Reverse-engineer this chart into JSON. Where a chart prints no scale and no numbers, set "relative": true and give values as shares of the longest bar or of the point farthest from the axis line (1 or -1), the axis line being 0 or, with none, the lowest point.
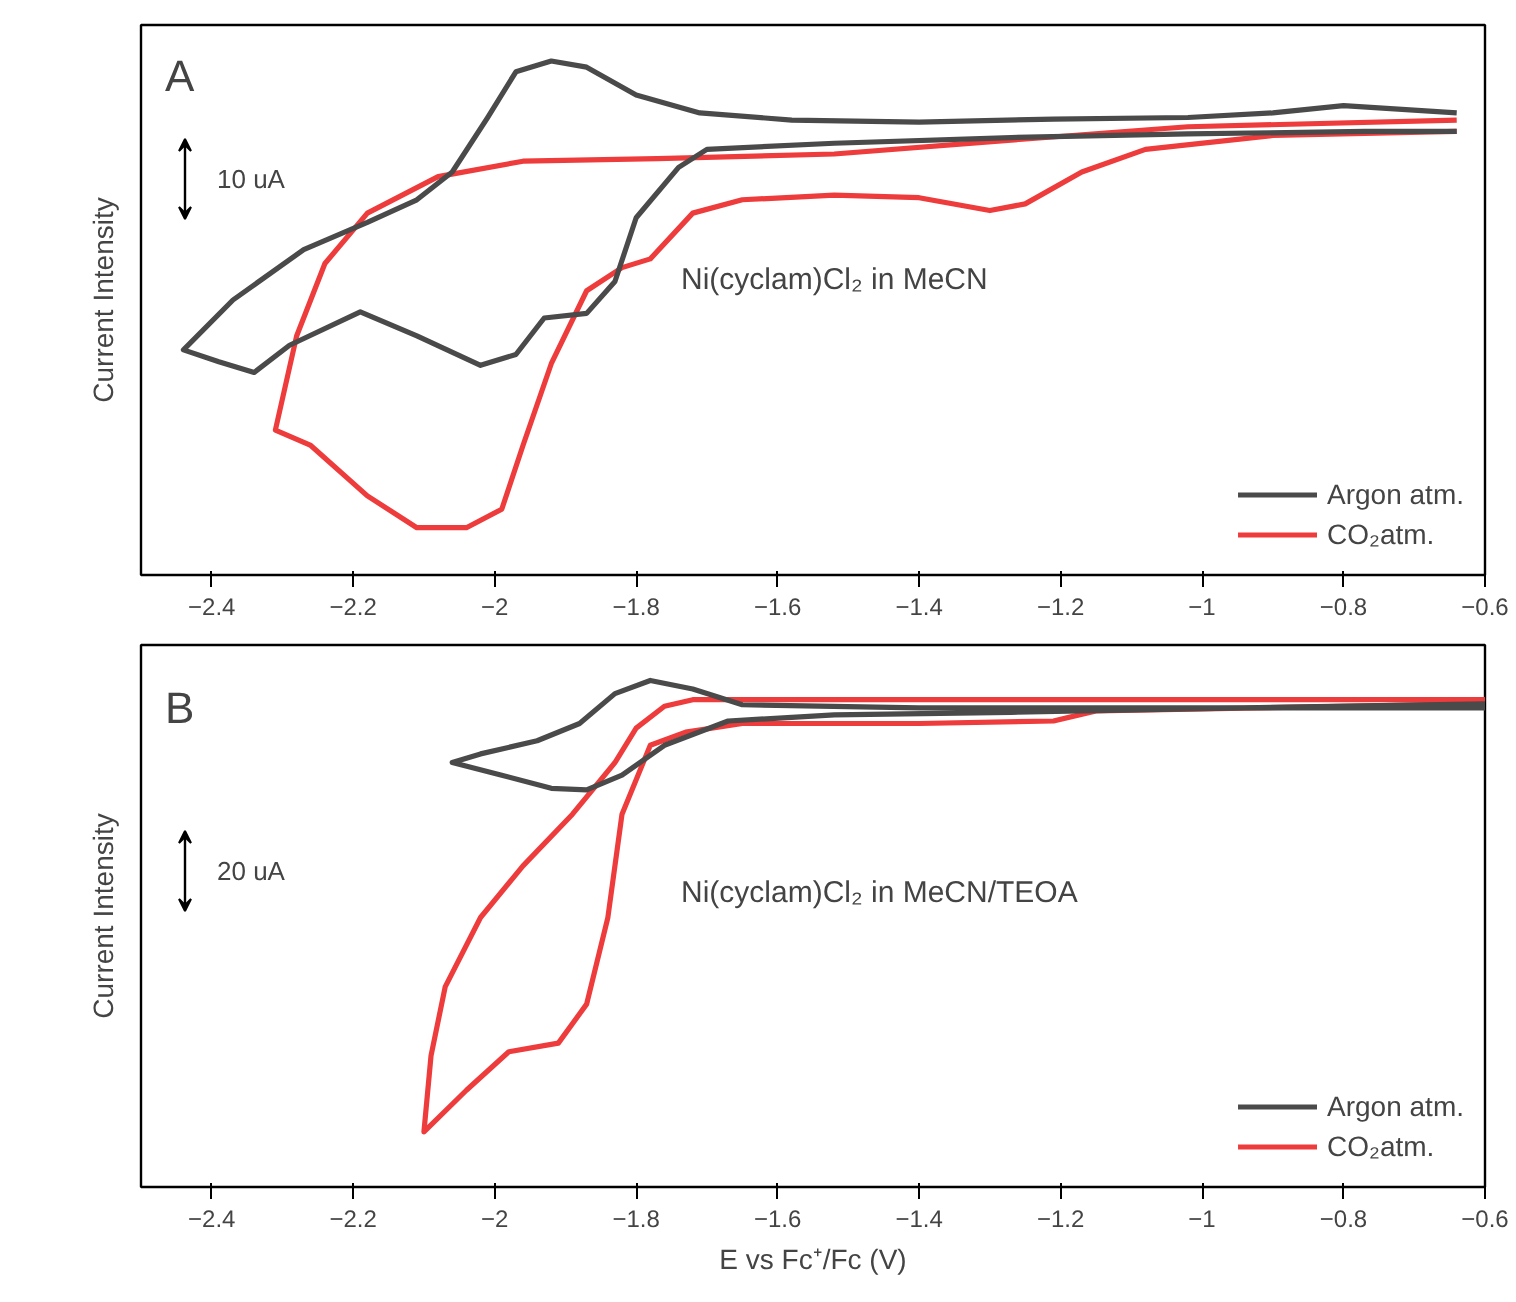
{
  "chart_data": [
    {
      "type": "line",
      "relative": true,
      "title": "A",
      "ylabel": "Current Intensity",
      "xlim": [
        -2.5,
        -0.6
      ],
      "xticks": [
        -2.4,
        -2.2,
        -2.0,
        -1.8,
        -1.6,
        -1.4,
        -1.2,
        -1.0,
        -0.8,
        -0.6
      ],
      "tick_labels": "x",
      "legend": "bottom right",
      "grid": false,
      "annotations": [
        "10 uA",
        "Ni(cyclam)Cl₂ in MeCN"
      ],
      "series": [
        {
          "name": "Argon atm.",
          "color": "#4a4a4a",
          "x": [
            -0.64,
            -0.8,
            -0.9,
            -1.02,
            -1.21,
            -1.4,
            -1.58,
            -1.71,
            -1.8,
            -1.87,
            -1.92,
            -1.97,
            -2.01,
            -2.06,
            -2.11,
            -2.18,
            -2.27,
            -2.37,
            -2.44,
            -2.39,
            -2.34,
            -2.29,
            -2.19,
            -2.11,
            -2.02,
            -1.97,
            -1.93,
            -1.87,
            -1.83,
            -1.8,
            -1.74,
            -1.7,
            -1.52,
            -1.27,
            -1.02,
            -0.77,
            -0.64
          ],
          "values": [
            0.899,
            0.913,
            0.899,
            0.89,
            0.887,
            0.881,
            0.885,
            0.899,
            0.934,
            0.988,
            1.0,
            0.979,
            0.89,
            0.784,
            0.73,
            0.686,
            0.633,
            0.535,
            0.438,
            0.415,
            0.394,
            0.447,
            0.512,
            0.465,
            0.408,
            0.429,
            0.5,
            0.509,
            0.571,
            0.695,
            0.793,
            0.828,
            0.84,
            0.851,
            0.858,
            0.863,
            0.863
          ]
        },
        {
          "name": "CO₂atm.",
          "color": "#ee3b3b",
          "x": [
            -0.64,
            -1.02,
            -1.27,
            -1.52,
            -1.77,
            -1.96,
            -2.08,
            -2.18,
            -2.24,
            -2.28,
            -2.31,
            -2.26,
            -2.18,
            -2.11,
            -2.04,
            -1.99,
            -1.96,
            -1.92,
            -1.87,
            -1.82,
            -1.78,
            -1.72,
            -1.65,
            -1.52,
            -1.4,
            -1.3,
            -1.25,
            -1.17,
            -1.08,
            -0.9,
            -0.64
          ],
          "values": [
            0.885,
            0.872,
            0.846,
            0.819,
            0.81,
            0.805,
            0.775,
            0.704,
            0.606,
            0.465,
            0.282,
            0.252,
            0.154,
            0.092,
            0.092,
            0.128,
            0.252,
            0.411,
            0.553,
            0.598,
            0.615,
            0.704,
            0.73,
            0.739,
            0.734,
            0.709,
            0.722,
            0.784,
            0.828,
            0.855,
            0.863
          ]
        }
      ]
    },
    {
      "type": "line",
      "relative": true,
      "title": "B",
      "xlabel": "E vs Fc⁺/Fc (V)",
      "ylabel": "Current Intensity",
      "xlim": [
        -2.5,
        -0.6
      ],
      "xticks": [
        -2.4,
        -2.2,
        -2.0,
        -1.8,
        -1.6,
        -1.4,
        -1.2,
        -1.0,
        -0.8,
        -0.6
      ],
      "tick_labels": "x",
      "legend": "bottom right",
      "grid": false,
      "annotations": [
        "20 uA",
        "Ni(cyclam)Cl₂ in MeCN/TEOA"
      ],
      "series": [
        {
          "name": "Argon atm.",
          "color": "#4a4a4a",
          "x": [
            -0.6,
            -1.02,
            -1.4,
            -1.65,
            -1.72,
            -1.78,
            -1.83,
            -1.88,
            -1.94,
            -2.02,
            -2.06,
            -1.99,
            -1.92,
            -1.87,
            -1.82,
            -1.76,
            -1.67,
            -1.52,
            -1.27,
            -1.02,
            -0.6
          ],
          "values": [
            0.946,
            0.946,
            0.946,
            0.952,
            0.983,
            1.0,
            0.974,
            0.915,
            0.881,
            0.855,
            0.838,
            0.813,
            0.787,
            0.784,
            0.813,
            0.872,
            0.92,
            0.932,
            0.937,
            0.944,
            0.954
          ]
        },
        {
          "name": "CO₂atm.",
          "color": "#ee3b3b",
          "x": [
            -0.6,
            -1.27,
            -1.52,
            -1.65,
            -1.72,
            -1.76,
            -1.8,
            -1.83,
            -1.89,
            -1.96,
            -2.02,
            -2.07,
            -2.09,
            -2.1,
            -2.04,
            -1.98,
            -1.91,
            -1.87,
            -1.84,
            -1.82,
            -1.78,
            -1.73,
            -1.65,
            -1.4,
            -1.21,
            -1.15,
            -0.6
          ],
          "values": [
            0.962,
            0.962,
            0.962,
            0.962,
            0.962,
            0.949,
            0.906,
            0.838,
            0.736,
            0.634,
            0.532,
            0.395,
            0.259,
            0.109,
            0.191,
            0.267,
            0.284,
            0.361,
            0.532,
            0.736,
            0.872,
            0.898,
            0.915,
            0.915,
            0.92,
            0.94,
            0.954
          ]
        }
      ]
    }
  ]
}
